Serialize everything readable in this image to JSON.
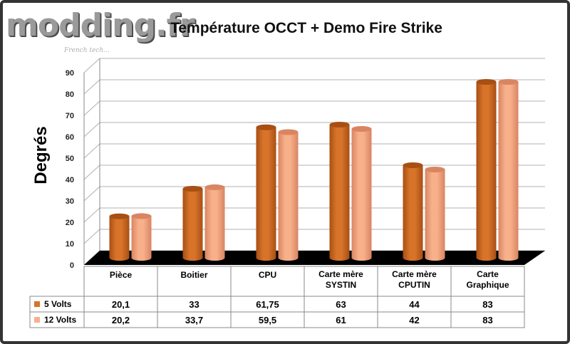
{
  "logo": {
    "text": "modding.fr",
    "subtitle": "French tech..."
  },
  "colors": {
    "series_5v": "#d8742a",
    "series_12v": "#f7b08a",
    "floor": "#000000",
    "grid": "#b0b0b0"
  },
  "chart_data": {
    "type": "bar",
    "title": "Température OCCT + Demo Fire Strike",
    "ylabel": "Degrés",
    "xlabel": "",
    "ylim": [
      0,
      90
    ],
    "yticks": [
      0,
      10,
      20,
      30,
      40,
      50,
      60,
      70,
      80,
      90
    ],
    "categories": [
      "Pièce",
      "Boitier",
      "CPU",
      "Carte mère SYSTIN",
      "Carte mère CPUTIN",
      "Carte Graphique"
    ],
    "category_lines": [
      [
        "Pièce"
      ],
      [
        "Boitier"
      ],
      [
        "CPU"
      ],
      [
        "Carte mère",
        "SYSTIN"
      ],
      [
        "Carte mère",
        "CPUTIN"
      ],
      [
        "Carte",
        "Graphique"
      ]
    ],
    "series": [
      {
        "name": "5 Volts",
        "values": [
          20.1,
          33,
          61.75,
          63,
          44,
          83
        ],
        "labels": [
          "20,1",
          "33",
          "61,75",
          "63",
          "44",
          "83"
        ]
      },
      {
        "name": "12 Volts",
        "values": [
          20.2,
          33.7,
          59.5,
          61,
          42,
          83
        ],
        "labels": [
          "20,2",
          "33,7",
          "59,5",
          "61",
          "42",
          "83"
        ]
      }
    ],
    "grid": true,
    "legend": "data-table"
  }
}
